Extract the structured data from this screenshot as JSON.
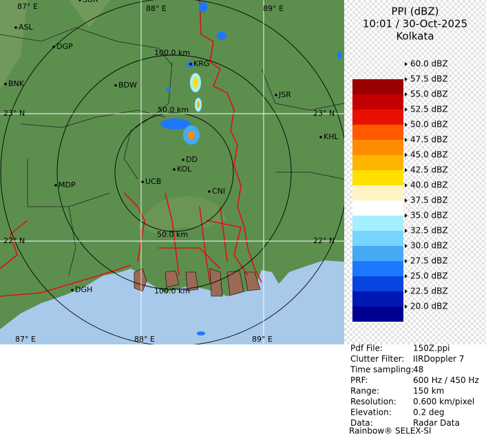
{
  "header": {
    "product": "PPI (dBZ)",
    "time": "10:01 / 30-Oct-2025",
    "station": "Kolkata"
  },
  "map": {
    "lon_labels_top": [
      "87° E",
      "88° E",
      "89° E"
    ],
    "lon_labels_bottom": [
      "87° E",
      "88° E",
      "89° E"
    ],
    "lat_labels_left": [
      "23° N",
      "22° N"
    ],
    "lat_labels_right": [
      "23° N",
      "22° N"
    ],
    "range_labels": [
      "100.0 km",
      "50.0 km",
      "50.0 km",
      "100.0 km"
    ],
    "places": [
      "SUR",
      "ASL",
      "DGP",
      "BNK",
      "BDW",
      "KRG",
      "JSR",
      "KHL",
      "DD",
      "KOL",
      "UCB",
      "CNI",
      "MDP",
      "DGH"
    ]
  },
  "legend": [
    {
      "label": "60.0 dBZ",
      "color": "checker"
    },
    {
      "label": "57.5 dBZ",
      "color": "#9a0000"
    },
    {
      "label": "55.0 dBZ",
      "color": "#c40000"
    },
    {
      "label": "52.5 dBZ",
      "color": "#e81000"
    },
    {
      "label": "50.0 dBZ",
      "color": "#ff5a00"
    },
    {
      "label": "47.5 dBZ",
      "color": "#ff8c00"
    },
    {
      "label": "45.0 dBZ",
      "color": "#ffb400"
    },
    {
      "label": "42.5 dBZ",
      "color": "#ffe000"
    },
    {
      "label": "40.0 dBZ",
      "color": "#fff4c4"
    },
    {
      "label": "37.5 dBZ",
      "color": "#ffffff"
    },
    {
      "label": "35.0 dBZ",
      "color": "#a4f0ff"
    },
    {
      "label": "32.5 dBZ",
      "color": "#78d4ff"
    },
    {
      "label": "30.0 dBZ",
      "color": "#44aaf4"
    },
    {
      "label": "27.5 dBZ",
      "color": "#1e78ff"
    },
    {
      "label": "25.0 dBZ",
      "color": "#0844e0"
    },
    {
      "label": "22.5 dBZ",
      "color": "#0018b4"
    },
    {
      "label": "20.0 dBZ",
      "color": "#000090"
    }
  ],
  "info": [
    [
      "Pdf File:",
      "150Z.ppi"
    ],
    [
      "Clutter Filter:",
      "IIRDoppler 7"
    ],
    [
      "Time sampling:",
      "48"
    ],
    [
      "PRF:",
      "600 Hz / 450 Hz"
    ],
    [
      "Range:",
      "150 km"
    ],
    [
      "Resolution:",
      "0.600 km/pixel"
    ],
    [
      "Elevation:",
      "0.2 deg"
    ],
    [
      "Data:",
      "Radar Data"
    ]
  ],
  "footer": "Rainbow® SELEX-SI"
}
